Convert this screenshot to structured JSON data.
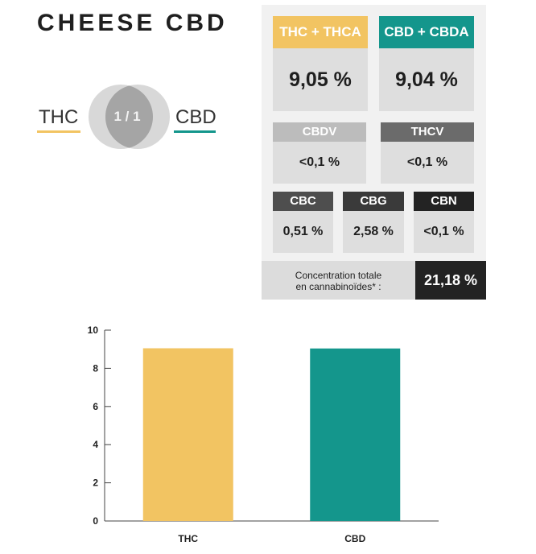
{
  "title": "CHEESE CBD",
  "ratio": {
    "left_label": "THC",
    "center": "1 / 1",
    "right_label": "CBD"
  },
  "colors": {
    "thc": "#f2c462",
    "cbd": "#14968c",
    "dark": "#232323",
    "mid": "#6b6b6b",
    "light": "#bcbcbc"
  },
  "cannabinoids": {
    "thc": {
      "label": "THC + THCA",
      "value": "9,05 %"
    },
    "cbd": {
      "label": "CBD + CBDA",
      "value": "9,04 %"
    },
    "cbdv": {
      "label": "CBDV",
      "value": "<0,1 %"
    },
    "thcv": {
      "label": "THCV",
      "value": "<0,1 %"
    },
    "cbc": {
      "label": "CBC",
      "value": "0,51 %"
    },
    "cbg": {
      "label": "CBG",
      "value": "2,58 %"
    },
    "cbn": {
      "label": "CBN",
      "value": "<0,1 %"
    },
    "total": {
      "label_line1": "Concentration totale",
      "label_line2": "en cannabinoïdes* :",
      "value": "21,18 %"
    }
  },
  "chart_data": {
    "type": "bar",
    "categories": [
      "THC",
      "CBD"
    ],
    "values": [
      9.05,
      9.04
    ],
    "title": "",
    "xlabel": "",
    "ylabel": "",
    "ylim": [
      0,
      10
    ],
    "yticks": [
      0,
      2,
      4,
      6,
      8,
      10
    ],
    "grid": false,
    "colors": [
      "#f2c462",
      "#14968c"
    ]
  }
}
